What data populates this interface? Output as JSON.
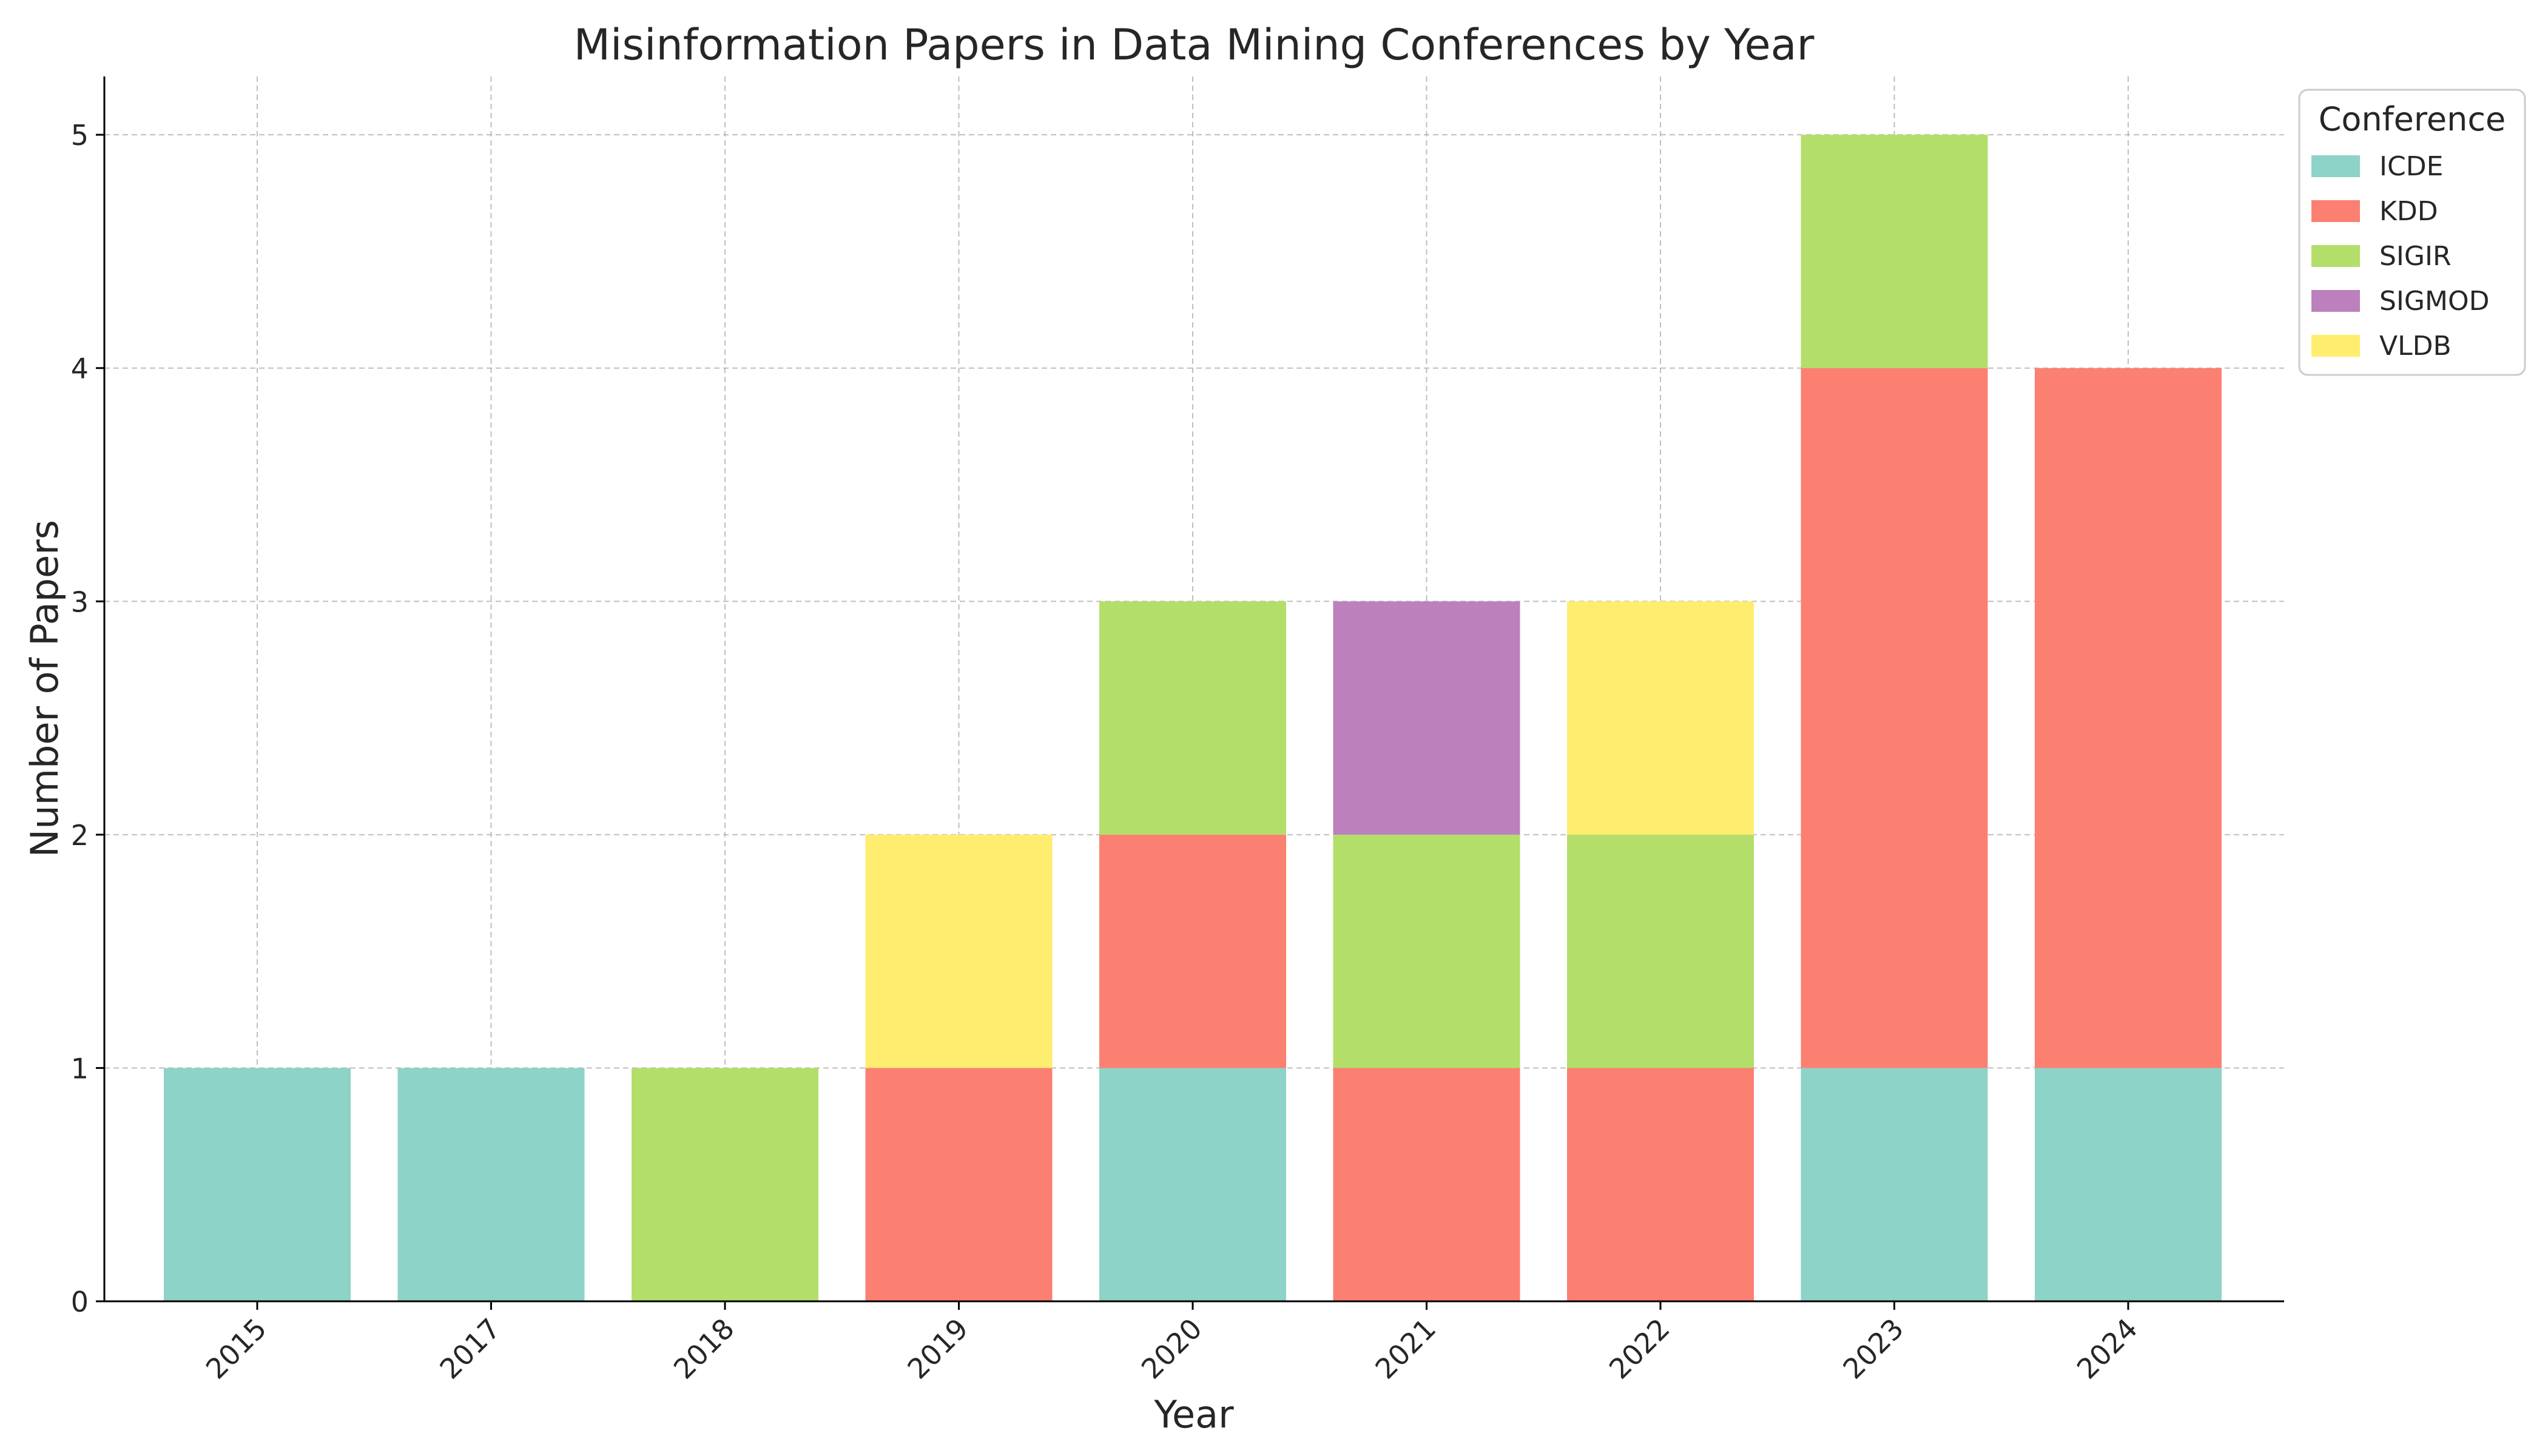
{
  "chart_data": {
    "type": "bar",
    "stacked": true,
    "title": "Misinformation Papers in Data Mining Conferences by Year",
    "xlabel": "Year",
    "ylabel": "Number of Papers",
    "categories": [
      "2015",
      "2017",
      "2018",
      "2019",
      "2020",
      "2021",
      "2022",
      "2023",
      "2024"
    ],
    "ylim": [
      0,
      5.25
    ],
    "yticks": [
      0,
      1,
      2,
      3,
      4,
      5
    ],
    "grid": true,
    "legend": {
      "title": "Conference",
      "position": "outside-top-right"
    },
    "series": [
      {
        "name": "ICDE",
        "color": "#8dd3c7",
        "values": [
          1,
          1,
          0,
          0,
          1,
          0,
          0,
          1,
          1
        ]
      },
      {
        "name": "KDD",
        "color": "#fb8072",
        "values": [
          0,
          0,
          0,
          1,
          1,
          1,
          1,
          3,
          3
        ]
      },
      {
        "name": "SIGIR",
        "color": "#b3de69",
        "values": [
          0,
          0,
          1,
          0,
          1,
          1,
          1,
          1,
          0
        ]
      },
      {
        "name": "SIGMOD",
        "color": "#bc80bd",
        "values": [
          0,
          0,
          0,
          0,
          0,
          1,
          0,
          0,
          0
        ]
      },
      {
        "name": "VLDB",
        "color": "#ffed6f",
        "values": [
          0,
          0,
          0,
          1,
          0,
          0,
          1,
          0,
          0
        ]
      }
    ]
  }
}
